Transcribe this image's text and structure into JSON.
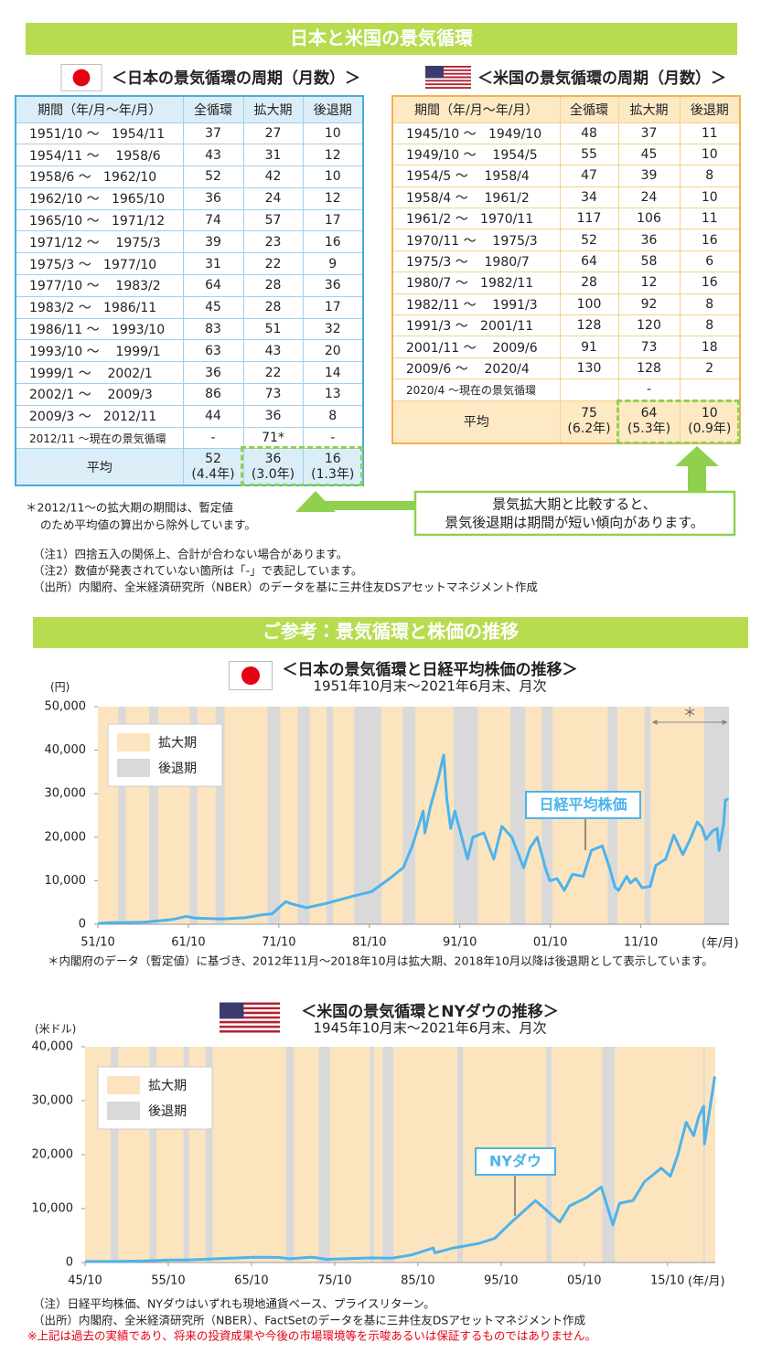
{
  "header": {
    "title": "日本と米国の景気循環"
  },
  "japan_table": {
    "title": "＜日本の景気循環の周期（月数）＞",
    "columns": [
      "期間（年/月～年/月）",
      "全循環",
      "拡大期",
      "後退期"
    ],
    "rows": [
      [
        "1951/10 ～   1954/11",
        "37",
        "27",
        "10"
      ],
      [
        "1954/11 ～    1958/6",
        "43",
        "31",
        "12"
      ],
      [
        "1958/6 ～   1962/10",
        "52",
        "42",
        "10"
      ],
      [
        "1962/10 ～   1965/10",
        "36",
        "24",
        "12"
      ],
      [
        "1965/10 ～   1971/12",
        "74",
        "57",
        "17"
      ],
      [
        "1971/12 ～    1975/3",
        "39",
        "23",
        "16"
      ],
      [
        "1975/3 ～   1977/10",
        "31",
        "22",
        "9"
      ],
      [
        "1977/10 ～    1983/2",
        "64",
        "28",
        "36"
      ],
      [
        "1983/2 ～   1986/11",
        "45",
        "28",
        "17"
      ],
      [
        "1986/11 ～   1993/10",
        "83",
        "51",
        "32"
      ],
      [
        "1993/10 ～    1999/1",
        "63",
        "43",
        "20"
      ],
      [
        "1999/1 ～    2002/1",
        "36",
        "22",
        "14"
      ],
      [
        "2002/1 ～    2009/3",
        "86",
        "73",
        "13"
      ],
      [
        "2009/3 ～   2012/11",
        "44",
        "36",
        "8"
      ],
      [
        "2012/11 ～現在の景気循環",
        "-",
        "71*",
        "-"
      ]
    ],
    "average": {
      "label": "平均",
      "cells": [
        [
          "52",
          "(4.4年)"
        ],
        [
          "36",
          "(3.0年)"
        ],
        [
          "16",
          "(1.3年)"
        ]
      ]
    }
  },
  "us_table": {
    "title": "＜米国の景気循環の周期（月数）＞",
    "columns": [
      "期間（年/月～年/月）",
      "全循環",
      "拡大期",
      "後退期"
    ],
    "rows": [
      [
        "1945/10 ～   1949/10",
        "48",
        "37",
        "11"
      ],
      [
        "1949/10 ～    1954/5",
        "55",
        "45",
        "10"
      ],
      [
        "1954/5 ～    1958/4",
        "47",
        "39",
        "8"
      ],
      [
        "1958/4 ～    1961/2",
        "34",
        "24",
        "10"
      ],
      [
        "1961/2 ～   1970/11",
        "117",
        "106",
        "11"
      ],
      [
        "1970/11 ～    1975/3",
        "52",
        "36",
        "16"
      ],
      [
        "1975/3 ～    1980/7",
        "64",
        "58",
        "6"
      ],
      [
        "1980/7 ～   1982/11",
        "28",
        "12",
        "16"
      ],
      [
        "1982/11 ～    1991/3",
        "100",
        "92",
        "8"
      ],
      [
        "1991/3 ～   2001/11",
        "128",
        "120",
        "8"
      ],
      [
        "2001/11 ～    2009/6",
        "91",
        "73",
        "18"
      ],
      [
        "2009/6 ～    2020/4",
        "130",
        "128",
        "2"
      ],
      [
        "2020/4 ～現在の景気循環",
        null,
        "-",
        null
      ]
    ],
    "average": {
      "label": "平均",
      "cells": [
        [
          "75",
          "(6.2年)"
        ],
        [
          "64",
          "(5.3年)"
        ],
        [
          "10",
          "(0.9年)"
        ]
      ]
    }
  },
  "footnote_star": [
    "＊2012/11～の拡大期の期間は、暫定値",
    "のため平均値の算出から除外しています。"
  ],
  "callout": [
    "景気拡大期と比較すると、",
    "景気後退期は期間が短い傾向があります。"
  ],
  "notes": [
    "（注1）四捨五入の関係上、合計が合わない場合があります。",
    "（注2）数値が発表されていない箇所は「-」で表記しています。",
    "（出所）内閣府、全米経済研究所（NBER）のデータを基に三井住友DSアセットマネジメント作成"
  ],
  "section2": {
    "title": "ご参考：景気循環と株価の推移"
  },
  "chart_data": [
    {
      "type": "line",
      "title": "＜日本の景気循環と日経平均株価の推移＞",
      "subtitle": "1951年10月末～2021年6月末、月次",
      "y_unit": "(円)",
      "x_unit": "(年/月)",
      "legend": "upper left",
      "bands": {
        "expansion": {
          "name": "拡大期",
          "color": "#fce4bf"
        },
        "recession": {
          "name": "後退期",
          "color": "#d9d9d9"
        }
      },
      "recessions": [
        [
          1954.0,
          1954.83
        ],
        [
          1957.42,
          1958.42
        ],
        [
          1961.92,
          1962.75
        ],
        [
          1964.75,
          1965.75
        ],
        [
          1970.5,
          1971.92
        ],
        [
          1973.83,
          1975.17
        ],
        [
          1977.0,
          1977.75
        ],
        [
          1980.08,
          1983.08
        ],
        [
          1985.42,
          1986.83
        ],
        [
          1991.08,
          1993.75
        ],
        [
          1997.33,
          1999.0
        ],
        [
          2000.83,
          2002.0
        ],
        [
          2008.08,
          2009.17
        ],
        [
          2012.17,
          2012.83
        ],
        [
          2018.75,
          2021.5
        ]
      ],
      "annotation": {
        "text": "＊",
        "span": [
          2012.83,
          2021.5
        ]
      },
      "footnote": "＊内閣府のデータ（暫定値）に基づき、2012年11月～2018年10月は拡大期、2018年10月以降は後退期として表示しています。",
      "xlim": [
        1951.75,
        2021.5
      ],
      "xticks": [
        {
          "value": 1951.75,
          "label": "51/10"
        },
        {
          "value": 1961.75,
          "label": "61/10"
        },
        {
          "value": 1971.75,
          "label": "71/10"
        },
        {
          "value": 1981.75,
          "label": "81/10"
        },
        {
          "value": 1991.75,
          "label": "91/10"
        },
        {
          "value": 2001.75,
          "label": "01/10"
        },
        {
          "value": 2011.75,
          "label": "11/10"
        }
      ],
      "ylim": [
        0,
        50000
      ],
      "yticks": [
        0,
        {
          "value": 10000,
          "label": "10,000"
        },
        {
          "value": 20000,
          "label": "20,000"
        },
        {
          "value": 30000,
          "label": "30,000"
        },
        {
          "value": 40000,
          "label": "40,000"
        },
        {
          "value": 50000,
          "label": "50,000"
        }
      ],
      "series": [
        {
          "name": "日経平均株価",
          "color": "#4db3ec",
          "x": [
            1951.75,
            1953,
            1955,
            1957,
            1959,
            1960,
            1961.5,
            1962.5,
            1965.5,
            1968,
            1970,
            1971,
            1972.5,
            1973,
            1974.8,
            1977,
            1980,
            1982,
            1984,
            1985.5,
            1986.5,
            1987.7,
            1987.9,
            1988.5,
            1989.3,
            1989.97,
            1990.3,
            1990.75,
            1991.2,
            1992.6,
            1993.2,
            1994.4,
            1995.5,
            1996.4,
            1997.5,
            1998.8,
            1999.5,
            2000.3,
            2001.2,
            2001.7,
            2002.5,
            2003.3,
            2004.2,
            2005.4,
            2006.3,
            2007.5,
            2008.3,
            2008.9,
            2009.3,
            2010.2,
            2010.6,
            2011.2,
            2011.9,
            2012.8,
            2013.4,
            2014.5,
            2015.4,
            2016.4,
            2017.2,
            2018.0,
            2018.5,
            2018.95,
            2019.7,
            2020.2,
            2020.4,
            2020.9,
            2021.1,
            2021.45
          ],
          "values": [
            180,
            350,
            400,
            500,
            900,
            1100,
            1800,
            1400,
            1200,
            1500,
            2200,
            2400,
            5200,
            4800,
            3800,
            4800,
            6500,
            7500,
            10500,
            13000,
            18000,
            26000,
            21000,
            27000,
            33000,
            38900,
            29000,
            22000,
            26000,
            15000,
            20000,
            21000,
            15000,
            22500,
            20000,
            13000,
            17500,
            20000,
            13000,
            10000,
            10500,
            7800,
            11500,
            11000,
            17000,
            18000,
            13000,
            8500,
            7800,
            11000,
            9500,
            10500,
            8400,
            8700,
            13500,
            15000,
            20500,
            16000,
            19500,
            23500,
            22300,
            19500,
            21500,
            22000,
            17000,
            23000,
            28500,
            28800
          ]
        }
      ]
    },
    {
      "type": "line",
      "title": "＜米国の景気循環とNYダウの推移＞",
      "subtitle": "1945年10月末～2021年6月末、月次",
      "y_unit": "(米ドル)",
      "x_unit": "(年/月)",
      "legend": "upper left",
      "bands": {
        "expansion": {
          "name": "拡大期",
          "color": "#fce4bf"
        },
        "recession": {
          "name": "後退期",
          "color": "#d9d9d9"
        }
      },
      "recessions": [
        [
          1948.83,
          1949.75
        ],
        [
          1953.5,
          1954.33
        ],
        [
          1957.58,
          1958.25
        ],
        [
          1960.25,
          1961.08
        ],
        [
          1969.92,
          1970.83
        ],
        [
          1973.83,
          1975.17
        ],
        [
          1980.0,
          1980.5
        ],
        [
          1981.5,
          1982.83
        ],
        [
          1990.5,
          1991.17
        ],
        [
          2001.17,
          2001.83
        ],
        [
          2007.92,
          2009.42
        ],
        [
          2020.08,
          2020.25
        ]
      ],
      "xlim": [
        1945.75,
        2021.5
      ],
      "xticks": [
        {
          "value": 1945.75,
          "label": "45/10"
        },
        {
          "value": 1955.75,
          "label": "55/10"
        },
        {
          "value": 1965.75,
          "label": "65/10"
        },
        {
          "value": 1975.75,
          "label": "75/10"
        },
        {
          "value": 1985.75,
          "label": "85/10"
        },
        {
          "value": 1995.75,
          "label": "95/10"
        },
        {
          "value": 2005.75,
          "label": "05/10"
        },
        {
          "value": 2015.75,
          "label": "15/10"
        }
      ],
      "ylim": [
        0,
        40000
      ],
      "yticks": [
        0,
        {
          "value": 10000,
          "label": "10,000"
        },
        {
          "value": 20000,
          "label": "20,000"
        },
        {
          "value": 30000,
          "label": "30,000"
        },
        {
          "value": 40000,
          "label": "40,000"
        }
      ],
      "series": [
        {
          "name": "NYダウ",
          "color": "#4db3ec",
          "x": [
            1945.75,
            1949.5,
            1953,
            1956,
            1958,
            1961.9,
            1966,
            1968.9,
            1970.4,
            1973,
            1974.8,
            1980,
            1982.6,
            1985,
            1987.6,
            1987.8,
            1990,
            1993,
            1995,
            1997,
            1999.9,
            2001.7,
            2002.8,
            2004,
            2006,
            2007.8,
            2009.2,
            2010,
            2011.6,
            2013,
            2015,
            2016.1,
            2017,
            2018.0,
            2018.9,
            2019.5,
            2020.1,
            2020.2,
            2020.9,
            2021.45
          ],
          "values": [
            190,
            180,
            280,
            480,
            450,
            720,
            980,
            950,
            700,
            1000,
            600,
            850,
            800,
            1400,
            2700,
            1800,
            2700,
            3500,
            4500,
            7500,
            11500,
            9000,
            7500,
            10500,
            12000,
            14000,
            7000,
            11000,
            11500,
            15000,
            17500,
            16000,
            20000,
            26000,
            23500,
            27000,
            29000,
            22000,
            29000,
            34500
          ]
        }
      ]
    }
  ],
  "footer": {
    "notes": [
      "（注）日経平均株価、NYダウはいずれも現地通貨ベース、プライスリターン。",
      "（出所）内閣府、全米経済研究所（NBER）、FactSetのデータを基に三井住友DSアセットマネジメント作成"
    ],
    "disclaimer": "※上記は過去の実績であり、将来の投資成果や今後の市場環境等を示唆あるいは保証するものではありません。"
  }
}
